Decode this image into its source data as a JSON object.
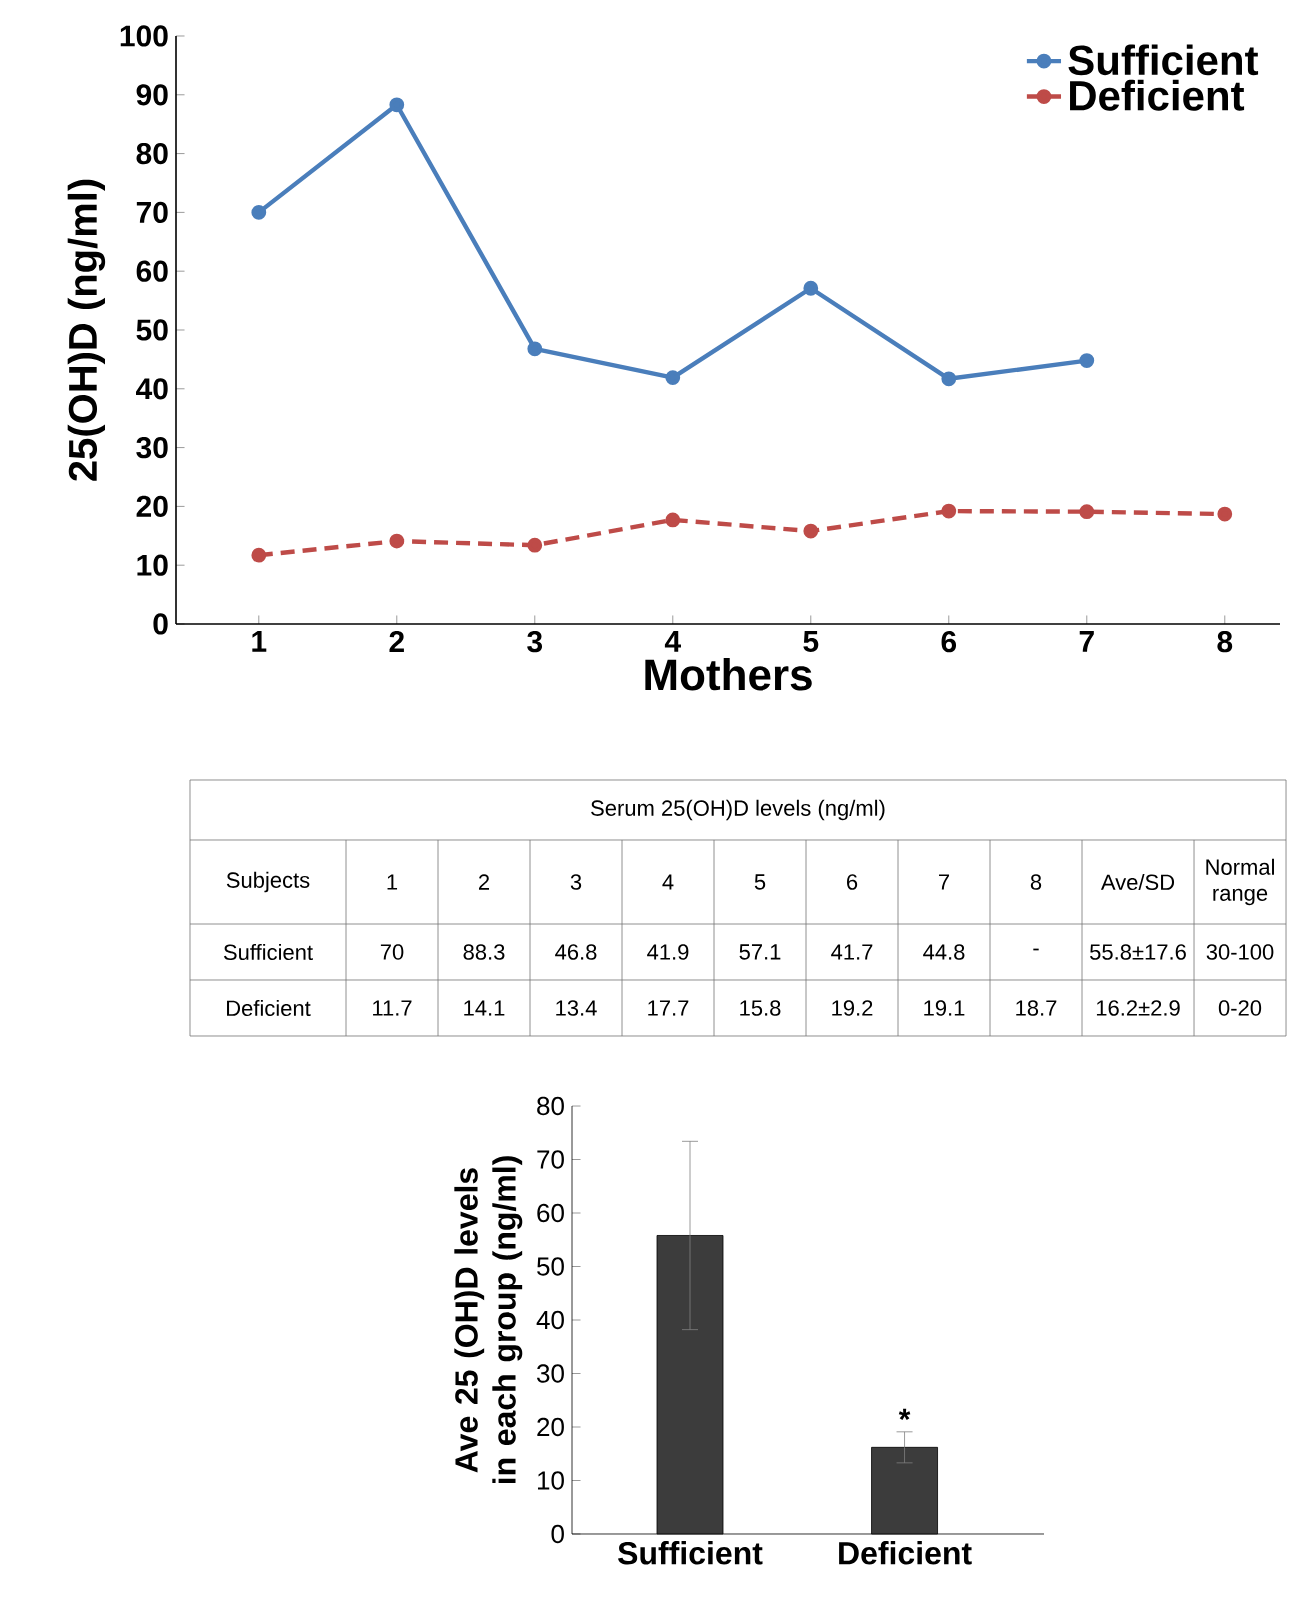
{
  "chart_data": [
    {
      "type": "line",
      "ylabel": "25(OH)D (ng/ml)",
      "xlabel": "Mothers",
      "categories": [
        "1",
        "2",
        "3",
        "4",
        "5",
        "6",
        "7",
        "8"
      ],
      "series": [
        {
          "name": "Sufficient",
          "color": "#4a7ebb",
          "line_style": "solid",
          "values": [
            70,
            88.3,
            46.8,
            41.9,
            57.1,
            41.7,
            44.8,
            null
          ]
        },
        {
          "name": "Deficient",
          "color": "#be4b48",
          "line_style": "dashed",
          "values": [
            11.7,
            14.1,
            13.4,
            17.7,
            15.8,
            19.2,
            19.1,
            18.7
          ]
        }
      ],
      "ylim": [
        0,
        100
      ],
      "yticks": [
        0,
        10,
        20,
        30,
        40,
        50,
        60,
        70,
        80,
        90,
        100
      ],
      "legend": "top right",
      "marker": "circle",
      "annotations": [
        "Serum 25(OH)D levels (ng/ml)",
        "Subjects",
        "Ave/SD",
        "Normal range",
        "70",
        "88.3",
        "46.8",
        "41.9",
        "57.1",
        "41.7",
        "44.8",
        "-",
        "55.8±17.6",
        "30-100",
        "11.7",
        "14.1",
        "13.4",
        "17.7",
        "15.8",
        "19.2",
        "19.1",
        "18.7",
        "16.2±2.9",
        "0-20"
      ]
    },
    {
      "type": "bar",
      "ylabel": "Ave 25 (OH)D levels in each group (ng/ml)",
      "categories": [
        "Sufficient",
        "Deficient"
      ],
      "values": [
        55.8,
        16.2
      ],
      "errors": [
        17.6,
        2.9
      ],
      "color": "#3c3c3c",
      "ylim": [
        0,
        80
      ],
      "yticks": [
        0,
        10,
        20,
        30,
        40,
        50,
        60,
        70,
        80
      ],
      "annotations": [
        {
          "text": "*",
          "x": "Deficient",
          "y": 19.1
        }
      ]
    }
  ]
}
